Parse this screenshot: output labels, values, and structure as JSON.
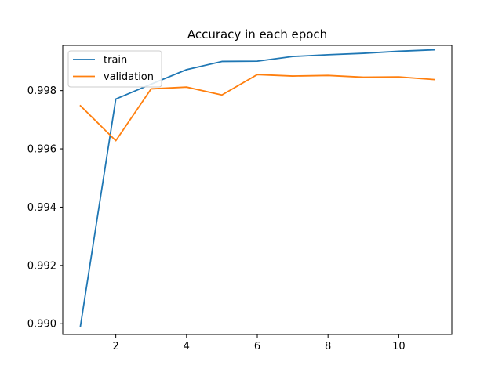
{
  "chart_data": {
    "type": "line",
    "title": "Accuracy in each epoch",
    "xlabel": "",
    "ylabel": "",
    "x": [
      1,
      2,
      3,
      4,
      5,
      6,
      7,
      8,
      9,
      10,
      11
    ],
    "xlim": [
      0.5,
      11.5
    ],
    "ylim": [
      0.98963,
      0.99955
    ],
    "xticks": [
      2,
      4,
      6,
      8,
      10
    ],
    "yticks": [
      0.99,
      0.992,
      0.994,
      0.996,
      0.998
    ],
    "ytick_labels": [
      "0.990",
      "0.992",
      "0.994",
      "0.996",
      "0.998"
    ],
    "grid": false,
    "legend_position": "top-left",
    "series": [
      {
        "name": "train",
        "color": "#1f77b4",
        "values": [
          0.98992,
          0.99771,
          0.99822,
          0.99872,
          0.999,
          0.99901,
          0.99917,
          0.99923,
          0.99928,
          0.99935,
          0.9994
        ]
      },
      {
        "name": "validation",
        "color": "#ff7f0e",
        "values": [
          0.99748,
          0.99628,
          0.99806,
          0.99812,
          0.99785,
          0.99855,
          0.9985,
          0.99852,
          0.99846,
          0.99847,
          0.99838
        ]
      }
    ]
  }
}
